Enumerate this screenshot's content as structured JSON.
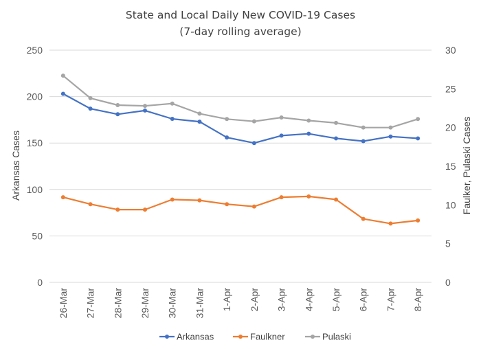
{
  "chart_data": {
    "type": "line",
    "title": "State and Local Daily New COVID-19 Cases",
    "subtitle": "(7-day rolling average)",
    "categories": [
      "26-Mar",
      "27-Mar",
      "28-Mar",
      "29-Mar",
      "30-Mar",
      "31-Mar",
      "1-Apr",
      "2-Apr",
      "3-Apr",
      "4-Apr",
      "5-Apr",
      "6-Apr",
      "7-Apr",
      "8-Apr"
    ],
    "xlabel": "",
    "ylabel": "Arkansas Cases",
    "y2label": "Faulker, Pulaski Cases",
    "ylim": [
      0,
      250
    ],
    "y2lim": [
      0,
      30
    ],
    "yticks": [
      "0",
      "50",
      "100",
      "150",
      "200",
      "250"
    ],
    "y2ticks": [
      "0",
      "5",
      "10",
      "15",
      "20",
      "25",
      "30"
    ],
    "grid": true,
    "legend_position": "bottom",
    "series": [
      {
        "name": "Arkansas",
        "axis": "left",
        "color": "#4472c4",
        "values": [
          203,
          187,
          181,
          185,
          176,
          173,
          156,
          150,
          158,
          160,
          155,
          152,
          157,
          155
        ]
      },
      {
        "name": "Faulkner",
        "axis": "right",
        "color": "#ed7d31",
        "values": [
          11.0,
          10.1,
          9.4,
          9.4,
          10.7,
          10.6,
          10.1,
          9.8,
          11.0,
          11.1,
          10.7,
          8.2,
          7.6,
          8.0
        ]
      },
      {
        "name": "Pulaski",
        "axis": "right",
        "color": "#a5a5a5",
        "values": [
          26.7,
          23.8,
          22.9,
          22.8,
          23.1,
          21.8,
          21.1,
          20.8,
          21.3,
          20.9,
          20.6,
          20.0,
          20.0,
          21.1
        ]
      }
    ]
  }
}
